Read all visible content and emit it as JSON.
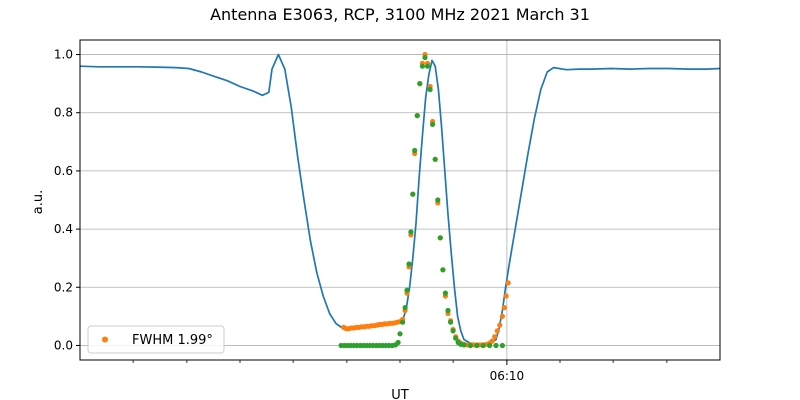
{
  "chart_data": {
    "type": "line",
    "title": "Antenna E3063, RCP, 3100 MHz 2021 March 31",
    "xlabel": "UT",
    "ylabel": "a.u.",
    "ylim": [
      -0.05,
      1.05
    ],
    "xlim": [
      0,
      1
    ],
    "yticks": [
      0.0,
      0.2,
      0.4,
      0.6,
      0.8,
      1.0
    ],
    "ytick_labels": [
      "0.0",
      "0.2",
      "0.4",
      "0.6",
      "0.8",
      "1.0"
    ],
    "xticks_major": [
      {
        "x": 0.667,
        "label": "06:10"
      }
    ],
    "xticks_minor": [
      0.083,
      0.167,
      0.25,
      0.333,
      0.417,
      0.5,
      0.583,
      0.75,
      0.833,
      0.917
    ],
    "grid": true,
    "legend_position": "lower-left",
    "series": [
      {
        "kind": "line",
        "color": "#1f77b4",
        "points": [
          [
            0.0,
            0.96
          ],
          [
            0.03,
            0.958
          ],
          [
            0.06,
            0.958
          ],
          [
            0.09,
            0.958
          ],
          [
            0.12,
            0.957
          ],
          [
            0.15,
            0.955
          ],
          [
            0.17,
            0.952
          ],
          [
            0.19,
            0.94
          ],
          [
            0.21,
            0.925
          ],
          [
            0.23,
            0.91
          ],
          [
            0.25,
            0.89
          ],
          [
            0.27,
            0.875
          ],
          [
            0.285,
            0.86
          ],
          [
            0.295,
            0.87
          ],
          [
            0.3,
            0.95
          ],
          [
            0.31,
            1.0
          ],
          [
            0.32,
            0.95
          ],
          [
            0.33,
            0.82
          ],
          [
            0.34,
            0.65
          ],
          [
            0.35,
            0.5
          ],
          [
            0.36,
            0.36
          ],
          [
            0.37,
            0.25
          ],
          [
            0.38,
            0.17
          ],
          [
            0.39,
            0.11
          ],
          [
            0.4,
            0.075
          ],
          [
            0.41,
            0.06
          ],
          [
            0.42,
            0.058
          ],
          [
            0.44,
            0.062
          ],
          [
            0.46,
            0.066
          ],
          [
            0.48,
            0.072
          ],
          [
            0.5,
            0.078
          ],
          [
            0.505,
            0.09
          ],
          [
            0.51,
            0.13
          ],
          [
            0.515,
            0.2
          ],
          [
            0.52,
            0.3
          ],
          [
            0.525,
            0.42
          ],
          [
            0.53,
            0.58
          ],
          [
            0.535,
            0.72
          ],
          [
            0.54,
            0.85
          ],
          [
            0.545,
            0.93
          ],
          [
            0.55,
            0.98
          ],
          [
            0.555,
            0.96
          ],
          [
            0.56,
            0.88
          ],
          [
            0.565,
            0.75
          ],
          [
            0.57,
            0.6
          ],
          [
            0.575,
            0.45
          ],
          [
            0.58,
            0.32
          ],
          [
            0.585,
            0.2
          ],
          [
            0.59,
            0.1
          ],
          [
            0.595,
            0.05
          ],
          [
            0.6,
            0.02
          ],
          [
            0.61,
            0.008
          ],
          [
            0.62,
            0.004
          ],
          [
            0.64,
            0.005
          ],
          [
            0.65,
            0.02
          ],
          [
            0.655,
            0.06
          ],
          [
            0.66,
            0.12
          ],
          [
            0.665,
            0.2
          ],
          [
            0.67,
            0.27
          ],
          [
            0.68,
            0.4
          ],
          [
            0.69,
            0.53
          ],
          [
            0.7,
            0.66
          ],
          [
            0.71,
            0.78
          ],
          [
            0.72,
            0.88
          ],
          [
            0.73,
            0.94
          ],
          [
            0.74,
            0.955
          ],
          [
            0.76,
            0.948
          ],
          [
            0.78,
            0.95
          ],
          [
            0.8,
            0.95
          ],
          [
            0.83,
            0.952
          ],
          [
            0.86,
            0.95
          ],
          [
            0.89,
            0.952
          ],
          [
            0.92,
            0.952
          ],
          [
            0.95,
            0.95
          ],
          [
            0.98,
            0.95
          ],
          [
            1.0,
            0.952
          ]
        ]
      },
      {
        "kind": "scatter",
        "name": "FWHM 1.99°",
        "color": "#ff7f0e",
        "points": [
          [
            0.412,
            0.062
          ],
          [
            0.416,
            0.058
          ],
          [
            0.42,
            0.058
          ],
          [
            0.424,
            0.06
          ],
          [
            0.428,
            0.06
          ],
          [
            0.432,
            0.062
          ],
          [
            0.436,
            0.062
          ],
          [
            0.44,
            0.064
          ],
          [
            0.444,
            0.064
          ],
          [
            0.448,
            0.066
          ],
          [
            0.452,
            0.066
          ],
          [
            0.456,
            0.068
          ],
          [
            0.46,
            0.068
          ],
          [
            0.464,
            0.07
          ],
          [
            0.468,
            0.072
          ],
          [
            0.472,
            0.072
          ],
          [
            0.476,
            0.074
          ],
          [
            0.48,
            0.074
          ],
          [
            0.484,
            0.076
          ],
          [
            0.488,
            0.076
          ],
          [
            0.492,
            0.078
          ],
          [
            0.496,
            0.08
          ],
          [
            0.5,
            0.082
          ],
          [
            0.504,
            0.09
          ],
          [
            0.508,
            0.12
          ],
          [
            0.511,
            0.18
          ],
          [
            0.514,
            0.27
          ],
          [
            0.517,
            0.38
          ],
          [
            0.52,
            0.52
          ],
          [
            0.523,
            0.66
          ],
          [
            0.527,
            0.79
          ],
          [
            0.531,
            0.9
          ],
          [
            0.535,
            0.97
          ],
          [
            0.539,
            1.0
          ],
          [
            0.543,
            0.97
          ],
          [
            0.547,
            0.89
          ],
          [
            0.551,
            0.77
          ],
          [
            0.555,
            0.64
          ],
          [
            0.559,
            0.49
          ],
          [
            0.563,
            0.37
          ],
          [
            0.567,
            0.26
          ],
          [
            0.571,
            0.17
          ],
          [
            0.575,
            0.11
          ],
          [
            0.579,
            0.085
          ],
          [
            0.583,
            0.055
          ],
          [
            0.587,
            0.03
          ],
          [
            0.591,
            0.015
          ],
          [
            0.595,
            0.008
          ],
          [
            0.6,
            0.004
          ],
          [
            0.605,
            0.002
          ],
          [
            0.61,
            0.002
          ],
          [
            0.615,
            0.002
          ],
          [
            0.62,
            0.002
          ],
          [
            0.625,
            0.002
          ],
          [
            0.63,
            0.002
          ],
          [
            0.635,
            0.004
          ],
          [
            0.64,
            0.008
          ],
          [
            0.644,
            0.015
          ],
          [
            0.648,
            0.03
          ],
          [
            0.652,
            0.05
          ],
          [
            0.656,
            0.07
          ],
          [
            0.66,
            0.1
          ],
          [
            0.663,
            0.13
          ],
          [
            0.666,
            0.17
          ],
          [
            0.669,
            0.215
          ]
        ]
      },
      {
        "kind": "scatter",
        "color": "#2ca02c",
        "points": [
          [
            0.408,
            0.0
          ],
          [
            0.413,
            0.0
          ],
          [
            0.418,
            0.0
          ],
          [
            0.423,
            0.0
          ],
          [
            0.428,
            0.0
          ],
          [
            0.433,
            0.0
          ],
          [
            0.438,
            0.0
          ],
          [
            0.443,
            0.0
          ],
          [
            0.448,
            0.0
          ],
          [
            0.453,
            0.0
          ],
          [
            0.458,
            0.0
          ],
          [
            0.463,
            0.0
          ],
          [
            0.468,
            0.0
          ],
          [
            0.473,
            0.0
          ],
          [
            0.478,
            0.0
          ],
          [
            0.483,
            0.0
          ],
          [
            0.488,
            0.0
          ],
          [
            0.493,
            0.002
          ],
          [
            0.497,
            0.01
          ],
          [
            0.5,
            0.04
          ],
          [
            0.504,
            0.08
          ],
          [
            0.508,
            0.13
          ],
          [
            0.511,
            0.19
          ],
          [
            0.514,
            0.28
          ],
          [
            0.517,
            0.39
          ],
          [
            0.52,
            0.52
          ],
          [
            0.523,
            0.67
          ],
          [
            0.527,
            0.79
          ],
          [
            0.531,
            0.9
          ],
          [
            0.535,
            0.96
          ],
          [
            0.539,
            0.99
          ],
          [
            0.543,
            0.96
          ],
          [
            0.547,
            0.88
          ],
          [
            0.551,
            0.76
          ],
          [
            0.555,
            0.64
          ],
          [
            0.559,
            0.5
          ],
          [
            0.563,
            0.37
          ],
          [
            0.567,
            0.26
          ],
          [
            0.571,
            0.18
          ],
          [
            0.575,
            0.12
          ],
          [
            0.579,
            0.08
          ],
          [
            0.583,
            0.05
          ],
          [
            0.587,
            0.025
          ],
          [
            0.591,
            0.01
          ],
          [
            0.595,
            0.004
          ],
          [
            0.6,
            0.002
          ],
          [
            0.61,
            0.0
          ],
          [
            0.62,
            0.0
          ],
          [
            0.63,
            0.0
          ],
          [
            0.64,
            0.0
          ],
          [
            0.65,
            0.0
          ],
          [
            0.66,
            0.0
          ]
        ]
      }
    ]
  }
}
